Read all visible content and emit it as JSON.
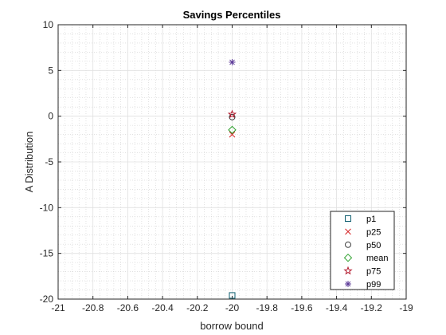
{
  "chart_data": {
    "type": "scatter",
    "title": "Savings Percentiles",
    "xlabel": "borrow bound",
    "ylabel": "A Distribution",
    "xlim": [
      -21,
      -19
    ],
    "ylim": [
      -20,
      10
    ],
    "xticks": [
      -21,
      -20.8,
      -20.6,
      -20.4,
      -20.2,
      -20,
      -19.8,
      -19.6,
      -19.4,
      -19.2,
      -19
    ],
    "xtick_labels": [
      "-21",
      "-20.8",
      "-20.6",
      "-20.4",
      "-20.2",
      "-20",
      "-19.8",
      "-19.6",
      "-19.4",
      "-19.2",
      "-19"
    ],
    "yticks": [
      -20,
      -15,
      -10,
      -5,
      0,
      5,
      10
    ],
    "ytick_labels": [
      "-20",
      "-15",
      "-10",
      "-5",
      "0",
      "5",
      "10"
    ],
    "grid": true,
    "minor_grid": true,
    "legend_location": "bottom-right",
    "series": [
      {
        "name": "p1",
        "marker": "square",
        "color": "#0e5e6f",
        "x": [
          -20
        ],
        "y": [
          -19.6
        ]
      },
      {
        "name": "p25",
        "marker": "x",
        "color": "#d62728",
        "x": [
          -20
        ],
        "y": [
          -2.0
        ]
      },
      {
        "name": "p50",
        "marker": "circle",
        "color": "#404040",
        "x": [
          -20
        ],
        "y": [
          -0.1
        ]
      },
      {
        "name": "mean",
        "marker": "diamond",
        "color": "#2ca02c",
        "x": [
          -20
        ],
        "y": [
          -1.5
        ]
      },
      {
        "name": "p75",
        "marker": "pentagram",
        "color": "#b2182b",
        "x": [
          -20
        ],
        "y": [
          0.2
        ]
      },
      {
        "name": "p99",
        "marker": "asterisk",
        "color": "#5e3c99",
        "x": [
          -20
        ],
        "y": [
          5.9
        ]
      }
    ]
  }
}
